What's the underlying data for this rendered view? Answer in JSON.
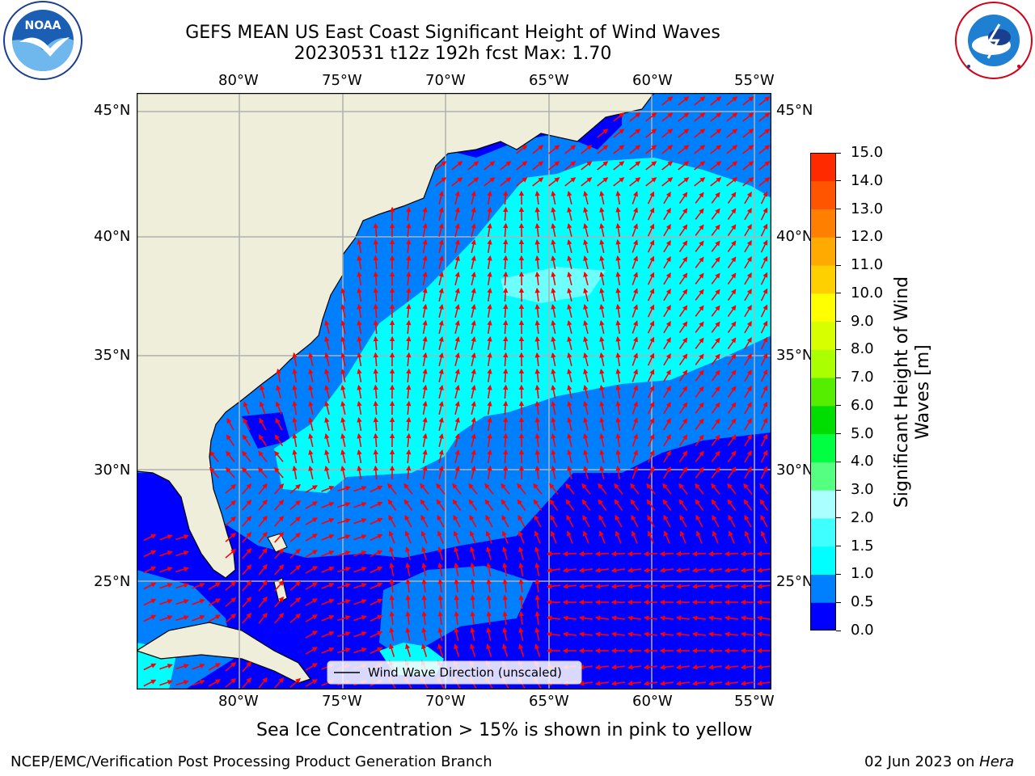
{
  "header": {
    "title": "GEFS MEAN US East Coast Significant Height of Wind Waves",
    "subtitle": "20230531 t12z 192h fcst   Max: 1.70"
  },
  "logos": {
    "left_logo_text": "NOAA",
    "right_logo_text": "NATIONAL WEATHER SERVICE"
  },
  "map": {
    "lon_ticks": [
      "80°W",
      "75°W",
      "70°W",
      "65°W",
      "60°W",
      "55°W"
    ],
    "lat_ticks": [
      "45°N",
      "40°N",
      "35°N",
      "30°N",
      "25°N"
    ],
    "legend_label": "Wind Wave Direction (unscaled)",
    "land_color": "#efeedb",
    "arrow_color": "#ff0000"
  },
  "colorbar": {
    "label": "Significant Height of Wind Waves [m]",
    "ticks": [
      "0.0",
      "0.5",
      "1.0",
      "1.5",
      "2.0",
      "3.0",
      "4.0",
      "5.0",
      "6.0",
      "7.0",
      "8.0",
      "9.0",
      "10.0",
      "11.0",
      "12.0",
      "13.0",
      "14.0",
      "15.0"
    ],
    "colors": [
      "#0000ff",
      "#0080ff",
      "#00ffff",
      "#40ffff",
      "#aaffff",
      "#55ff80",
      "#00ff40",
      "#00dd00",
      "#55ee00",
      "#aaff00",
      "#d8ff00",
      "#ffff00",
      "#ffd000",
      "#ffaa00",
      "#ff8000",
      "#ff5500",
      "#ff2a00",
      "#ff0000"
    ]
  },
  "notes": {
    "sea_ice": "Sea Ice Concentration > 15% is shown in pink to yellow"
  },
  "footer": {
    "left": "NCEP/EMC/Verification Post Processing Product Generation Branch",
    "date": "02 Jun 2023 on ",
    "host": "Hera"
  }
}
